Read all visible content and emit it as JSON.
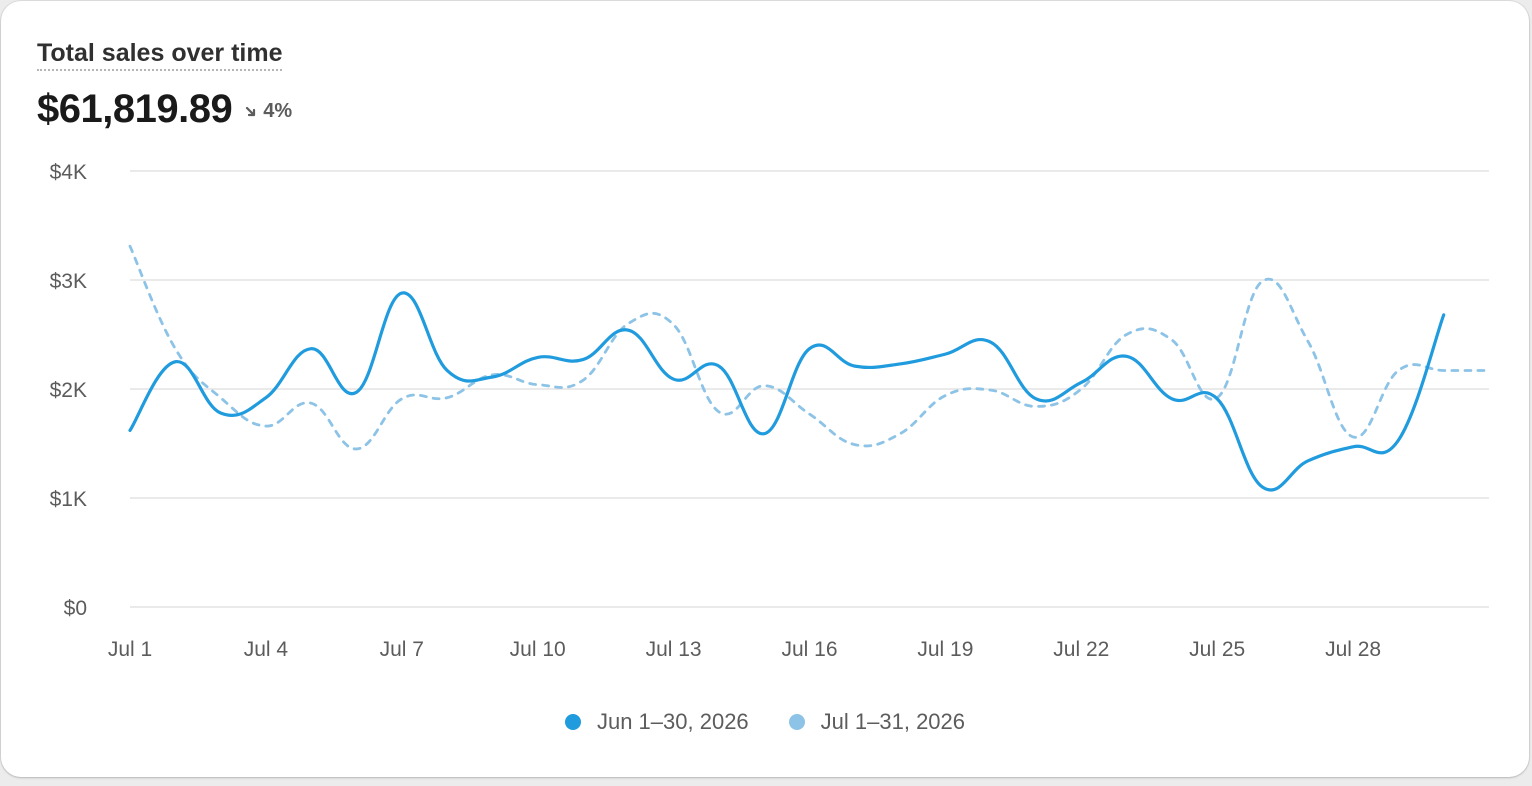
{
  "card": {
    "title": "Total sales over time",
    "total": "$61,819.89",
    "delta": "4%",
    "delta_direction": "down",
    "delta_icon": "arrow-down-right-icon"
  },
  "colors": {
    "current": "#1f9bde",
    "previous": "#8cc3e6",
    "grid": "#e3e3e3",
    "axis_text": "#5c5c5c"
  },
  "chart_data": {
    "type": "line",
    "title": "Total sales over time",
    "xlabel": "",
    "ylabel": "",
    "ylim": [
      0,
      4000
    ],
    "y_ticks": [
      {
        "value": 0,
        "label": "$0"
      },
      {
        "value": 1000,
        "label": "$1K"
      },
      {
        "value": 2000,
        "label": "$2K"
      },
      {
        "value": 3000,
        "label": "$3K"
      },
      {
        "value": 4000,
        "label": "$4K"
      }
    ],
    "x_ticks": [
      {
        "day": 1,
        "label": "Jul 1"
      },
      {
        "day": 4,
        "label": "Jul 4"
      },
      {
        "day": 7,
        "label": "Jul 7"
      },
      {
        "day": 10,
        "label": "Jul 10"
      },
      {
        "day": 13,
        "label": "Jul 13"
      },
      {
        "day": 16,
        "label": "Jul 16"
      },
      {
        "day": 19,
        "label": "Jul 19"
      },
      {
        "day": 22,
        "label": "Jul 22"
      },
      {
        "day": 25,
        "label": "Jul 25"
      },
      {
        "day": 28,
        "label": "Jul 28"
      }
    ],
    "grid": true,
    "legend_position": "bottom-center",
    "series": [
      {
        "name": "Jun 1–30, 2026",
        "style": "solid",
        "values": [
          1620,
          2250,
          1780,
          1920,
          2370,
          1970,
          2880,
          2170,
          2110,
          2290,
          2270,
          2540,
          2090,
          2210,
          1590,
          2370,
          2210,
          2230,
          2320,
          2430,
          1910,
          2060,
          2300,
          1910,
          1910,
          1100,
          1340,
          1470,
          1530,
          2680
        ]
      },
      {
        "name": "Jul 1–31, 2026",
        "style": "dashed",
        "values": [
          3310,
          2370,
          1920,
          1660,
          1870,
          1450,
          1910,
          1920,
          2130,
          2040,
          2080,
          2600,
          2590,
          1790,
          2030,
          1770,
          1490,
          1590,
          1940,
          1990,
          1840,
          2000,
          2500,
          2450,
          1920,
          2990,
          2440,
          1560,
          2170,
          2170,
          2170
        ]
      }
    ]
  }
}
